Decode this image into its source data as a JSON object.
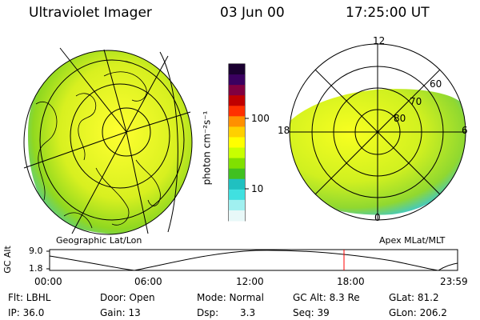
{
  "header": {
    "instrument": "Ultraviolet Imager",
    "date": "03 Jun 00",
    "time": "17:25:00 UT"
  },
  "panels": {
    "left_label": "Geographic Lat/Lon",
    "right_label": "Apex MLat/MLT"
  },
  "polar_plot": {
    "mlt_labels": {
      "top": "12",
      "left": "18",
      "right": "6",
      "bottom": "0"
    },
    "lat_labels": [
      "60",
      "70",
      "80"
    ]
  },
  "colorbar": {
    "unit_label": "photon cm⁻²s⁻¹",
    "ticks": [
      "100",
      "10"
    ],
    "colors": [
      "#1a0030",
      "#3a0060",
      "#800040",
      "#c00000",
      "#ff3000",
      "#ff9000",
      "#ffd000",
      "#ffff00",
      "#c8ff00",
      "#80e000",
      "#40c020",
      "#20c0c0",
      "#40e0e0",
      "#a0f0f0",
      "#e8f8f8"
    ]
  },
  "altitude_strip": {
    "ylabel": "GC Alt",
    "yticks": [
      "9.0",
      "1.8"
    ],
    "xticks": [
      "00:00",
      "06:00",
      "12:00",
      "18:00",
      "23:59"
    ],
    "marker_time": "17:25",
    "marker_color": "#ff0000"
  },
  "footer": {
    "flt": "Flt: LBHL",
    "ip": "IP: 36.0",
    "door": "Door: Open",
    "gain": "Gain: 13",
    "mode": "Mode: Normal",
    "dsp_label": "Dsp:",
    "dsp_value": "3.3",
    "gcalt": "GC Alt: 8.3 Re",
    "seq": "Seq: 39",
    "glat": "GLat: 81.2",
    "glon": "GLon: 206.2"
  }
}
